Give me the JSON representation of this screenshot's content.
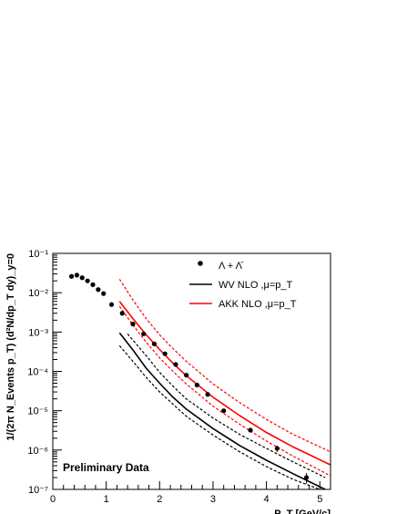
{
  "chart_data": {
    "type": "scatter",
    "xlabel": "P_T [GeV/c]",
    "ylabel": "1/(2π N_Events p_T) (d²N/dp_T dy)_y=0",
    "xlim": [
      0,
      5.2
    ],
    "ylim_log10": [
      -7,
      -1
    ],
    "yscale": "log",
    "grid": false,
    "legend_position": "top-right",
    "x_ticks": [
      "0",
      "1",
      "2",
      "3",
      "4",
      "5"
    ],
    "y_ticks": [
      "10⁻⁷",
      "10⁻⁶",
      "10⁻⁵",
      "10⁻⁴",
      "10⁻³",
      "10⁻²",
      "10⁻¹"
    ],
    "annotation": "Preliminary Data",
    "legend": [
      {
        "label": "Λ + Λ̄",
        "style": "marker",
        "color": "#000000"
      },
      {
        "label": "WV NLO ,μ=p_T",
        "style": "line",
        "color": "#000000"
      },
      {
        "label": "AKK NLO ,μ=p_T",
        "style": "line",
        "color": "#ff0000"
      }
    ],
    "series": [
      {
        "name": "Λ + Λ̄",
        "kind": "points",
        "color": "#000000",
        "x": [
          0.35,
          0.45,
          0.55,
          0.65,
          0.75,
          0.85,
          0.95,
          1.1,
          1.3,
          1.5,
          1.7,
          1.9,
          2.1,
          2.3,
          2.5,
          2.7,
          2.9,
          3.2,
          3.7,
          4.2,
          4.75
        ],
        "y": [
          0.026,
          0.028,
          0.024,
          0.02,
          0.016,
          0.012,
          0.0095,
          0.005,
          0.003,
          0.0016,
          0.0009,
          0.0005,
          0.00028,
          0.00015,
          8e-05,
          4.5e-05,
          2.6e-05,
          1e-05,
          3.2e-06,
          1.1e-06,
          2e-07
        ],
        "yerr": [
          0,
          0,
          0,
          0,
          0,
          0,
          0,
          0,
          0,
          0,
          0,
          0,
          0,
          0,
          0,
          0,
          0,
          0,
          4e-07,
          2e-07,
          6e-08
        ]
      },
      {
        "name": "WV NLO ,μ=p_T",
        "kind": "line",
        "color": "#000000",
        "dash": "solid",
        "x": [
          1.25,
          1.5,
          1.75,
          2.0,
          2.25,
          2.5,
          3.0,
          3.5,
          4.0,
          4.5,
          5.1
        ],
        "y": [
          0.00095,
          0.00035,
          0.00012,
          5e-05,
          2.2e-05,
          1.1e-05,
          3.5e-06,
          1.3e-06,
          5.5e-07,
          2.5e-07,
          1e-07
        ]
      },
      {
        "name": "WV NLO upper",
        "kind": "line",
        "color": "#000000",
        "dash": "dashed",
        "x": [
          1.4,
          1.75,
          2.0,
          2.25,
          2.5,
          3.0,
          3.5,
          4.0,
          4.5,
          5.1
        ],
        "y": [
          0.0009,
          0.00025,
          9.5e-05,
          4.2e-05,
          2e-05,
          6.5e-06,
          2.5e-06,
          1.1e-06,
          5e-07,
          2e-07
        ]
      },
      {
        "name": "WV NLO lower",
        "kind": "line",
        "color": "#000000",
        "dash": "dashed",
        "x": [
          1.25,
          1.5,
          1.75,
          2.0,
          2.5,
          3.0,
          3.5,
          4.0,
          4.5,
          5.0
        ],
        "y": [
          0.00045,
          0.00018,
          7e-05,
          3e-05,
          7.2e-06,
          2.4e-06,
          9e-07,
          3.8e-07,
          1.8e-07,
          1e-07
        ]
      },
      {
        "name": "AKK NLO ,μ=p_T",
        "kind": "line",
        "color": "#ff0000",
        "dash": "solid",
        "x": [
          1.25,
          1.5,
          1.75,
          2.0,
          2.25,
          2.5,
          3.0,
          3.5,
          4.0,
          4.5,
          5.2
        ],
        "y": [
          0.006,
          0.0022,
          0.00085,
          0.00036,
          0.00016,
          7.8e-05,
          2.2e-05,
          7.5e-06,
          2.8e-06,
          1.2e-06,
          4.2e-07
        ]
      },
      {
        "name": "AKK NLO upper",
        "kind": "line",
        "color": "#ff0000",
        "dash": "dashed",
        "x": [
          1.25,
          1.5,
          1.75,
          2.0,
          2.25,
          2.5,
          3.0,
          3.5,
          4.0,
          4.5,
          5.2
        ],
        "y": [
          0.022,
          0.0065,
          0.0022,
          0.00085,
          0.00038,
          0.00018,
          4.8e-05,
          1.6e-05,
          6e-06,
          2.5e-06,
          9e-07
        ]
      },
      {
        "name": "AKK NLO lower",
        "kind": "line",
        "color": "#ff0000",
        "dash": "dashed",
        "x": [
          1.25,
          1.5,
          1.75,
          2.0,
          2.25,
          2.5,
          3.0,
          3.5,
          4.0,
          4.5,
          5.2
        ],
        "y": [
          0.0045,
          0.0015,
          0.00055,
          0.00022,
          0.0001,
          4.8e-05,
          1.3e-05,
          4.5e-06,
          1.7e-06,
          7e-07,
          2.2e-07
        ]
      }
    ]
  }
}
